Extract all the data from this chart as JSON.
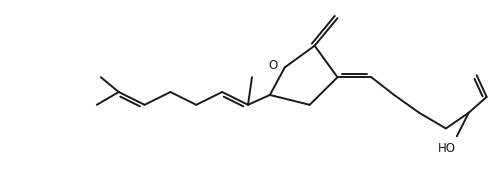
{
  "bg_color": "#ffffff",
  "line_color": "#1a1a1a",
  "line_width": 1.4,
  "figsize": [
    4.95,
    1.85
  ],
  "dpi": 100,
  "text_color": "#1a1a1a",
  "font_size": 8.5
}
